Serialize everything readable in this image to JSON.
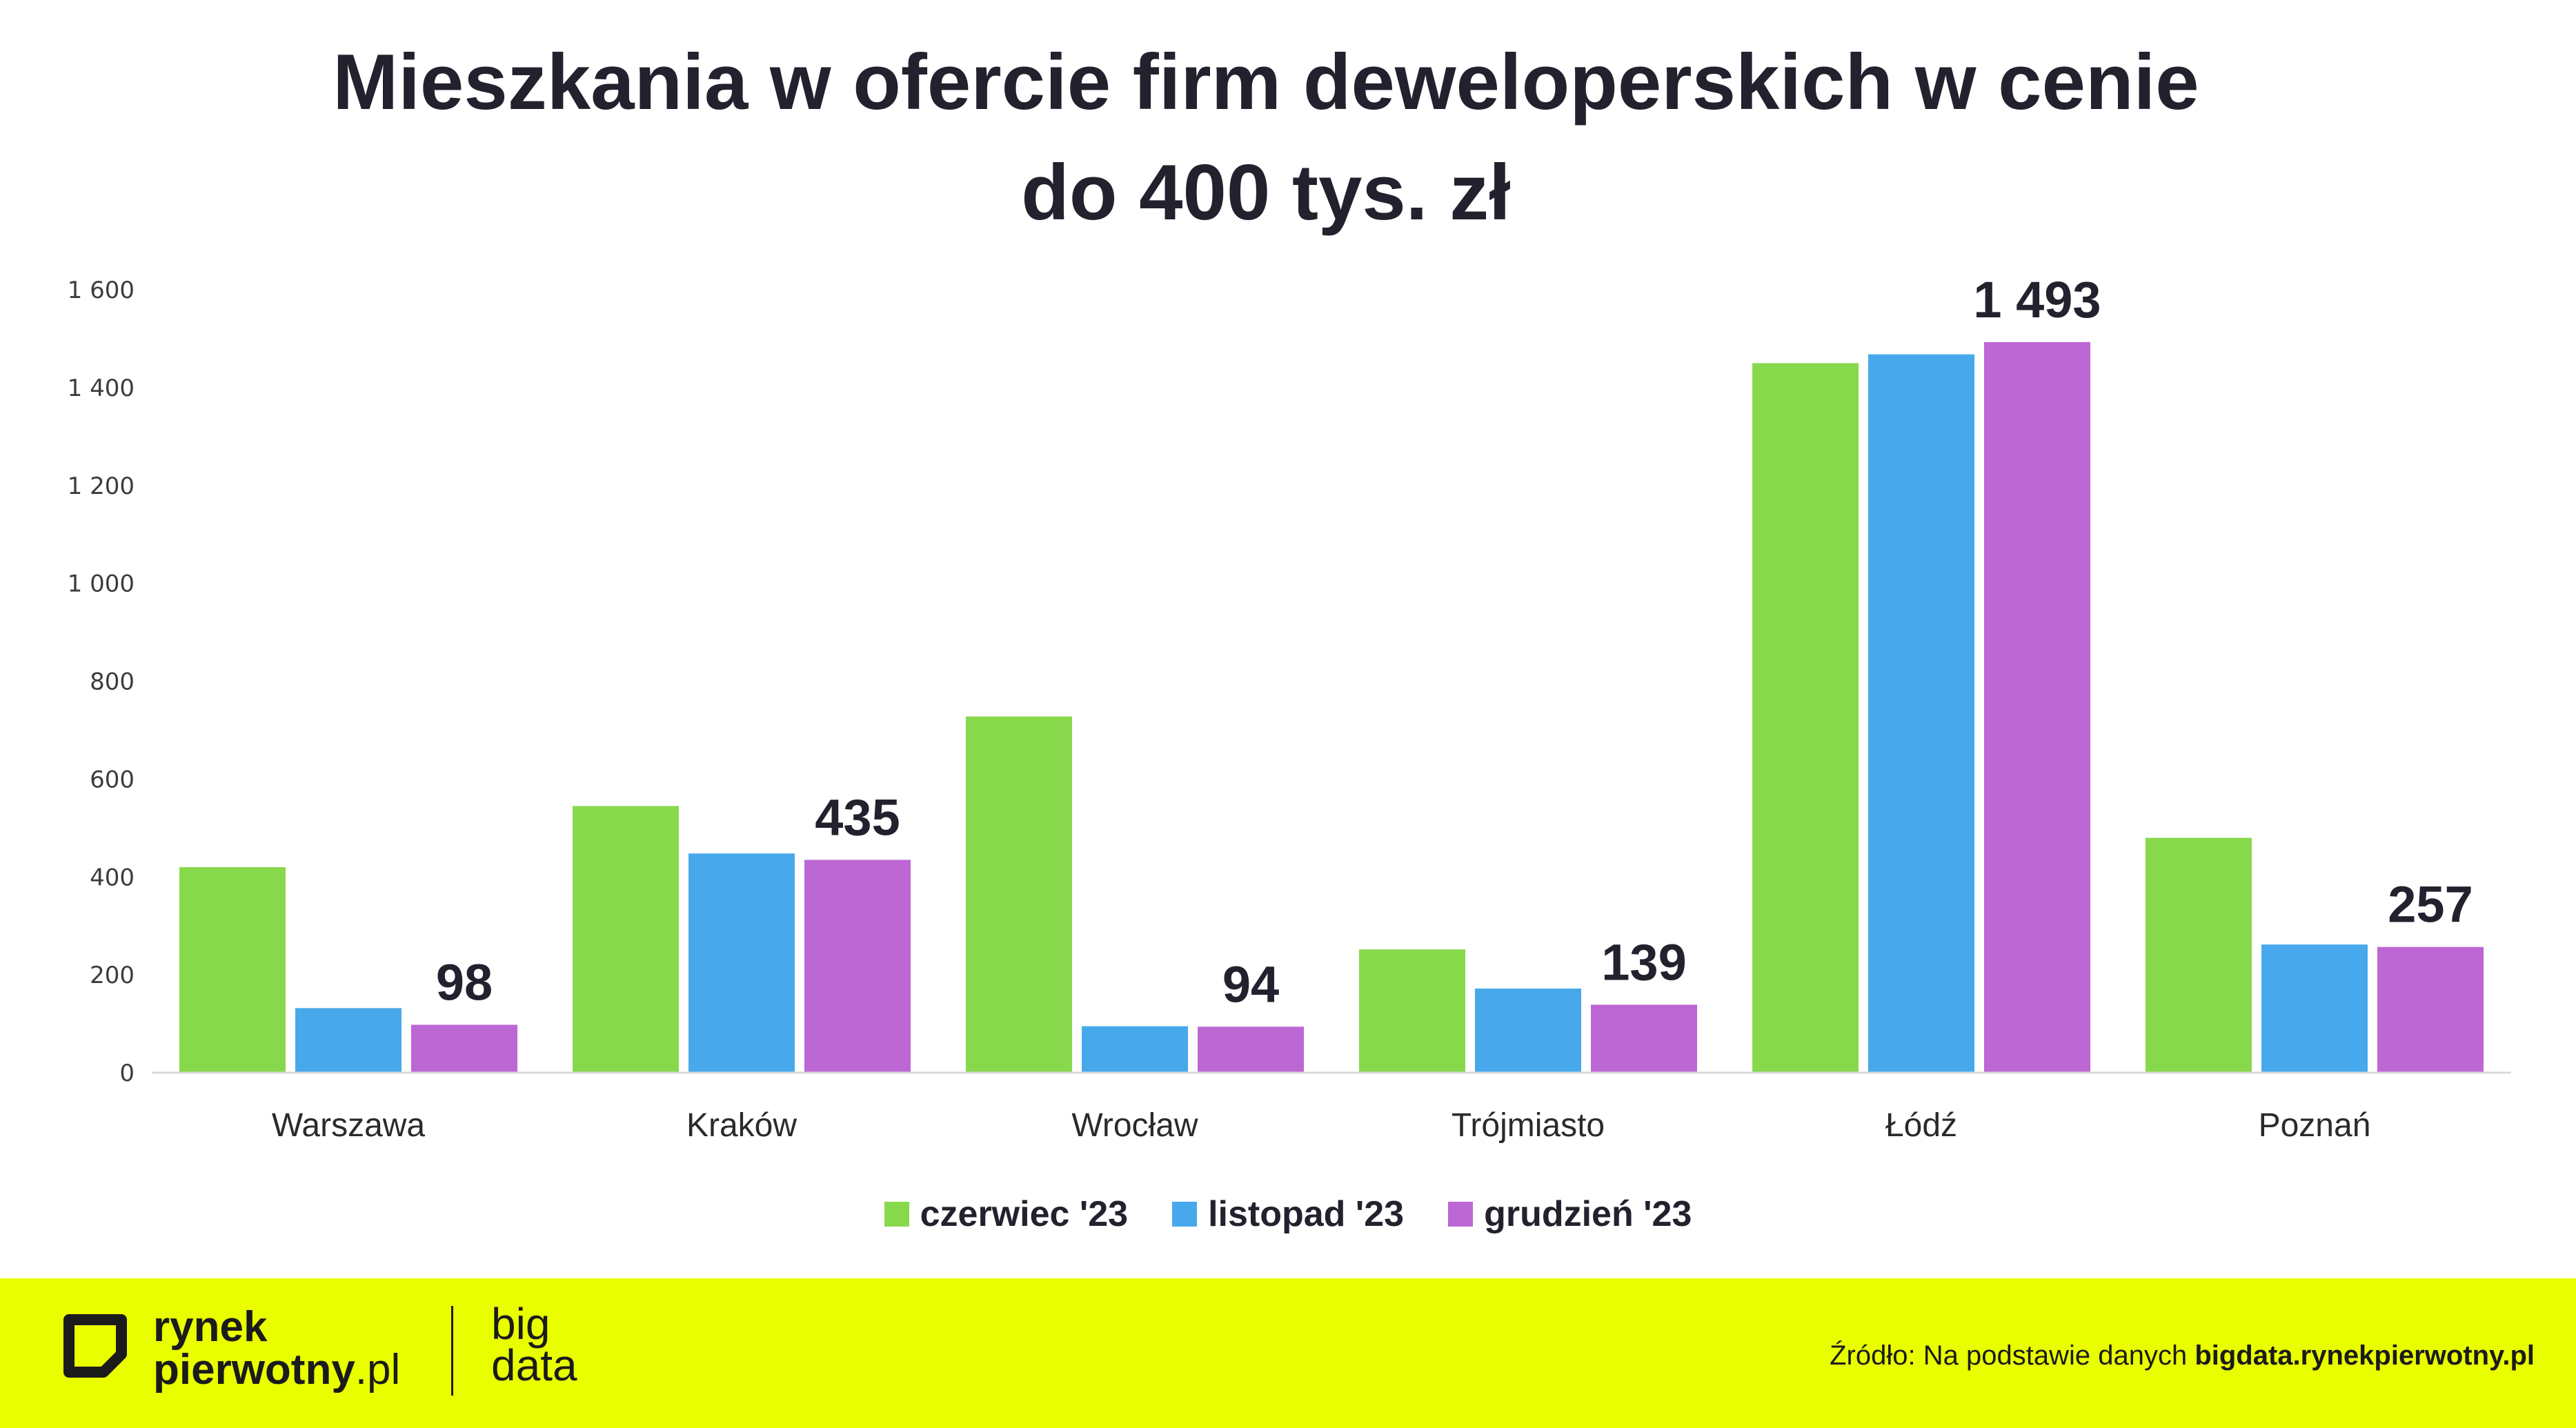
{
  "chart_data": {
    "type": "bar",
    "title_lines": [
      "Mieszkania w ofercie firm deweloperskich w cenie",
      "do 400 tys. zł"
    ],
    "categories": [
      "Warszawa",
      "Kraków",
      "Wrocław",
      "Trójmiasto",
      "Łódź",
      "Poznań"
    ],
    "series": [
      {
        "name": "czerwiec '23",
        "color": "#88d84c",
        "values": [
          420,
          545,
          728,
          252,
          1450,
          480
        ]
      },
      {
        "name": "listopad '23",
        "color": "#47a9eb",
        "values": [
          132,
          448,
          95,
          172,
          1468,
          262
        ]
      },
      {
        "name": "grudzień '23",
        "color": "#bd67d4",
        "values": [
          98,
          435,
          94,
          139,
          1493,
          257
        ]
      }
    ],
    "data_labels": [
      "98",
      "435",
      "94",
      "139",
      "1 493",
      "257"
    ],
    "y_ticks": [
      0,
      200,
      400,
      600,
      800,
      1000,
      1200,
      1400,
      1600
    ],
    "y_tick_labels": [
      "0",
      "200",
      "400",
      "600",
      "800",
      "1 000",
      "1 200",
      "1 400",
      "1 600"
    ],
    "ylim": [
      0,
      1600
    ],
    "xlabel": "",
    "ylabel": "",
    "grid": false,
    "legend": "bottom"
  },
  "footer": {
    "brand_line1": "rynek",
    "brand_line2_bold": "pierwotny",
    "brand_line2_light": ".pl",
    "bigdata_line1": "big",
    "bigdata_line2": "data",
    "source_prefix": "Źródło: Na podstawie danych ",
    "source_link": "bigdata.rynekpierwotny.pl",
    "background": "#e9ff00"
  }
}
